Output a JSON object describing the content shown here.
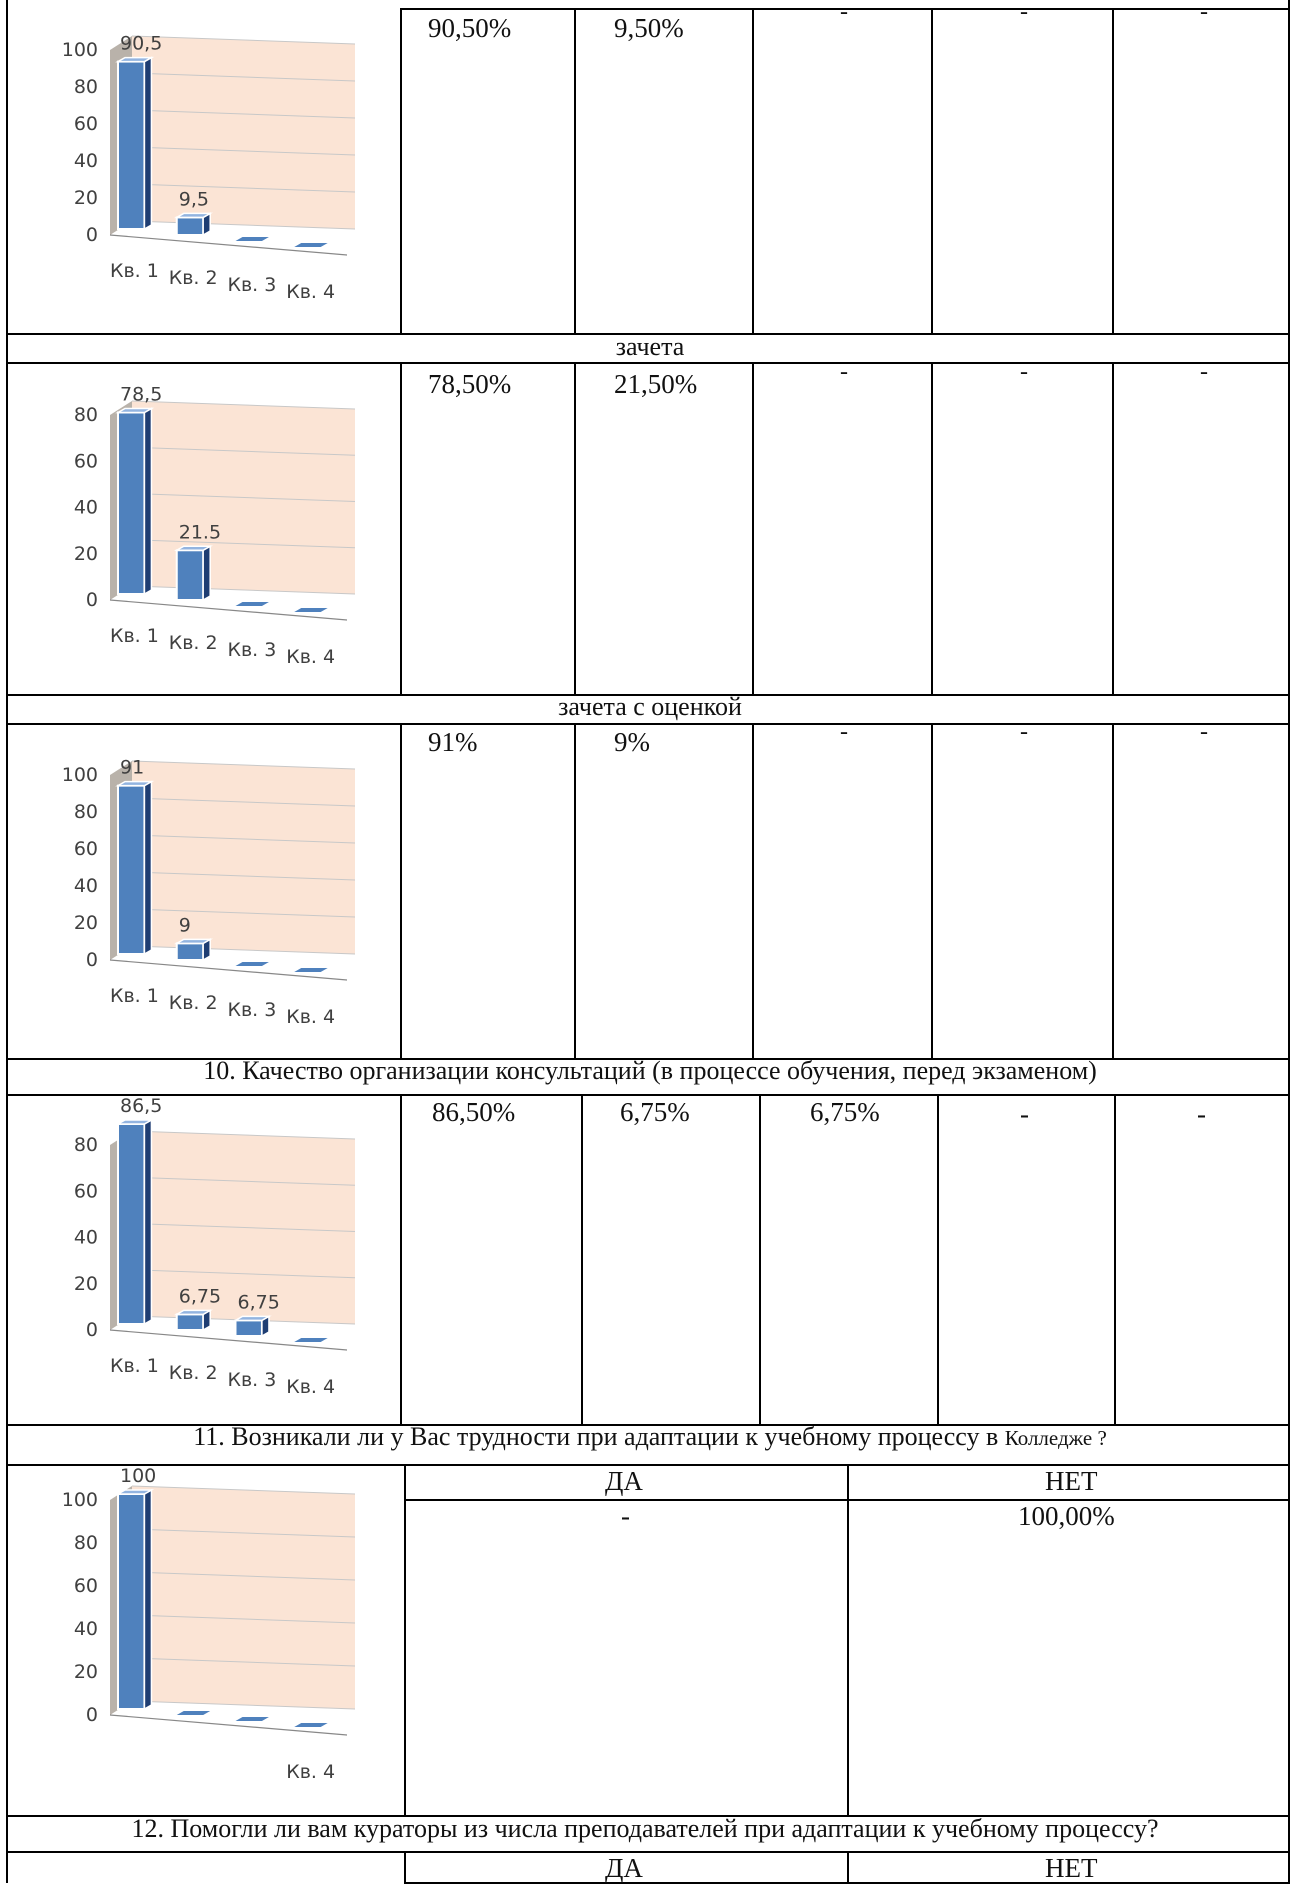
{
  "section_captions": [
    "зачета",
    "зачета с оценкой",
    "10. Качество организации консультаций (в процессе обучения, перед экзаменом)",
    "11. Возникали ли у Вас трудности при адаптации к учебному процессу в",
    "Колледже ?",
    "12. Помогли ли вам кураторы из числа преподавателей при адаптации к учебному процессу?"
  ],
  "rows": [
    {
      "values": [
        "90,50%",
        "9,50%",
        "-",
        "-",
        "-"
      ]
    },
    {
      "values": [
        "78,50%",
        "21,50%",
        "-",
        "-",
        "-"
      ]
    },
    {
      "values": [
        "91%",
        "9%",
        "-",
        "-",
        "-"
      ]
    },
    {
      "values": [
        "86,50%",
        "6,75%",
        "6,75%",
        "-",
        "-"
      ]
    }
  ],
  "yesno_block_11": {
    "yes_label": "ДА",
    "no_label": "НЕТ",
    "yes_value": "-",
    "no_value": "100,00%"
  },
  "yesno_block_12": {
    "yes_label": "ДА",
    "no_label": "НЕТ"
  },
  "chart_data": [
    {
      "type": "bar",
      "categories": [
        "Кв. 1",
        "Кв. 2",
        "Кв. 3",
        "Кв. 4"
      ],
      "values": [
        90.5,
        9.5,
        0,
        0
      ],
      "data_labels": [
        "90,5",
        "9,5",
        "",
        ""
      ],
      "yticks": [
        "0",
        "20",
        "40",
        "60",
        "80",
        "100"
      ],
      "ylim": [
        0,
        100
      ]
    },
    {
      "type": "bar",
      "categories": [
        "Кв. 1",
        "Кв. 2",
        "Кв. 3",
        "Кв. 4"
      ],
      "values": [
        78.5,
        21.5,
        0,
        0
      ],
      "data_labels": [
        "78,5",
        "21.5",
        "",
        ""
      ],
      "yticks": [
        "0",
        "20",
        "40",
        "60",
        "80"
      ],
      "ylim": [
        0,
        80
      ]
    },
    {
      "type": "bar",
      "categories": [
        "Кв. 1",
        "Кв. 2",
        "Кв. 3",
        "Кв. 4"
      ],
      "values": [
        91,
        9,
        0,
        0
      ],
      "data_labels": [
        "91",
        "9",
        "",
        ""
      ],
      "yticks": [
        "0",
        "20",
        "40",
        "60",
        "80",
        "100"
      ],
      "ylim": [
        0,
        100
      ]
    },
    {
      "type": "bar",
      "categories": [
        "Кв. 1",
        "Кв. 2",
        "Кв. 3",
        "Кв. 4"
      ],
      "values": [
        86.5,
        6.75,
        6.75,
        0
      ],
      "data_labels": [
        "86,5",
        "6,75",
        "6,75",
        ""
      ],
      "yticks": [
        "0",
        "20",
        "40",
        "60",
        "80"
      ],
      "ylim": [
        0,
        80
      ]
    },
    {
      "type": "bar",
      "categories": [
        "",
        "",
        "",
        "Кв. 4"
      ],
      "values": [
        100,
        0,
        0,
        0
      ],
      "data_labels": [
        "100",
        "",
        "",
        ""
      ],
      "yticks": [
        "0",
        "20",
        "40",
        "60",
        "80",
        "100"
      ],
      "ylim": [
        0,
        100
      ]
    }
  ],
  "colors": {
    "bar_front": "#4f81bd",
    "bar_side": "#1f3e73",
    "bar_top": "#93b4e0",
    "wall": "#fbe4d5",
    "grid": "#c8c8c8"
  }
}
